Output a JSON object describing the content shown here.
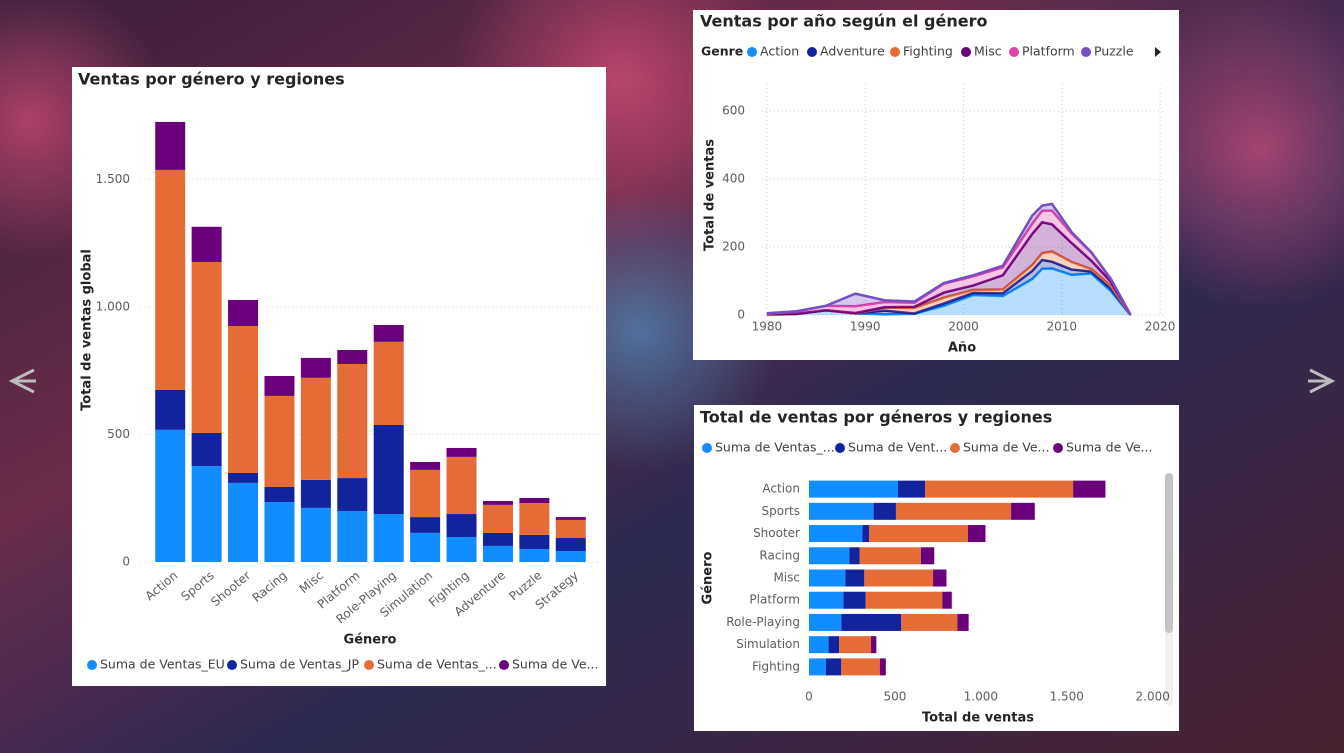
{
  "chart_data": [
    {
      "type": "bar",
      "stacked": true,
      "title": "Ventas por género y regiones",
      "x_label": "Género",
      "y_label": "Total de ventas global",
      "categories": [
        "Action",
        "Sports",
        "Shooter",
        "Racing",
        "Misc",
        "Platform",
        "Role-Playing",
        "Simulation",
        "Fighting",
        "Adventure",
        "Puzzle",
        "Strategy"
      ],
      "series": [
        {
          "name": "Suma de Ventas_EU",
          "color": "#118DFF",
          "values": [
            518,
            376,
            310,
            235,
            212,
            200,
            188,
            114,
            98,
            63,
            51,
            43
          ]
        },
        {
          "name": "Suma de Ventas_JP",
          "color": "#12239E",
          "values": [
            157,
            130,
            39,
            59,
            110,
            129,
            349,
            62,
            90,
            51,
            55,
            51
          ]
        },
        {
          "name": "Suma de Ventas_...",
          "color": "#E66C37",
          "values": [
            862,
            670,
            576,
            357,
            400,
            447,
            326,
            185,
            224,
            110,
            125,
            71
          ]
        },
        {
          "name": "Suma de Ve...",
          "color": "#6B007B",
          "values": [
            188,
            138,
            102,
            78,
            78,
            55,
            66,
            31,
            35,
            15,
            20,
            11
          ]
        }
      ],
      "ylim": [
        0,
        1760
      ],
      "yticks": [
        0,
        500,
        {
          "value": 1000,
          "label": "1.000"
        },
        {
          "value": 1500,
          "label": "1.500"
        }
      ],
      "grid": true,
      "legend": "bottom"
    },
    {
      "type": "area",
      "stacked": true,
      "title": "Ventas por año según el género",
      "x_label": "Año",
      "y_label": "Total de ventas",
      "legend_title": "Genre",
      "x": [
        1980,
        1983,
        1986,
        1989,
        1992,
        1995,
        1998,
        2001,
        2004,
        2007,
        2008,
        2009,
        2011,
        2013,
        2015,
        2017
      ],
      "series": [
        {
          "name": "Action",
          "color": "#118DFF",
          "values": [
            0.3,
            3,
            14,
            4.6,
            2,
            3.6,
            27,
            59,
            56,
            106,
            136,
            137,
            118,
            122,
            70,
            0
          ]
        },
        {
          "name": "Adventure",
          "color": "#12239E",
          "values": [
            0,
            0.4,
            0,
            0,
            11,
            1,
            7,
            6,
            8,
            24,
            26,
            20,
            16,
            6,
            8,
            0
          ]
        },
        {
          "name": "Fighting",
          "color": "#E66C37",
          "values": [
            0.8,
            0,
            0,
            0,
            9,
            16,
            17,
            9,
            11,
            17,
            20,
            30,
            22,
            7,
            8,
            0
          ]
        },
        {
          "name": "Misc",
          "color": "#6B007B",
          "values": [
            2.7,
            0,
            0,
            1.3,
            1.2,
            3.5,
            15,
            13,
            42,
            92,
            91,
            80,
            56,
            25,
            12,
            0
          ]
        },
        {
          "name": "Platform",
          "color": "#E044A7",
          "values": [
            0,
            6.9,
            13,
            20,
            15,
            12,
            26,
            27,
            23,
            30,
            34,
            40,
            28,
            24,
            7,
            0
          ]
        },
        {
          "name": "Puzzle",
          "color": "#744EC2",
          "values": [
            1.2,
            0.8,
            0,
            37,
            5,
            3.5,
            2,
            3,
            5,
            24,
            15,
            20,
            4,
            1,
            0.7,
            0
          ]
        }
      ],
      "xlim": [
        1979.5,
        2020.5
      ],
      "xticks": [
        1980,
        1990,
        2000,
        2010,
        2020
      ],
      "ylim": [
        0,
        680
      ],
      "yticks": [
        0,
        200,
        400,
        600
      ],
      "grid": true,
      "legend": "top"
    },
    {
      "type": "barh",
      "stacked": true,
      "title": "Total de ventas por géneros y regiones",
      "x_label": "Total de ventas",
      "y_label": "Género",
      "categories": [
        "Action",
        "Sports",
        "Shooter",
        "Racing",
        "Misc",
        "Platform",
        "Role-Playing",
        "Simulation",
        "Fighting"
      ],
      "series": [
        {
          "name": "Suma de Ventas_...",
          "color": "#118DFF",
          "values": [
            518,
            376,
            310,
            235,
            212,
            200,
            188,
            114,
            98
          ]
        },
        {
          "name": "Suma de Vent...",
          "color": "#12239E",
          "values": [
            157,
            130,
            39,
            59,
            110,
            129,
            349,
            62,
            90
          ]
        },
        {
          "name": "Suma de Ve...",
          "color": "#E66C37",
          "values": [
            862,
            670,
            576,
            357,
            400,
            447,
            326,
            185,
            224
          ]
        },
        {
          "name": "Suma de Ve...",
          "color": "#6B007B",
          "values": [
            188,
            138,
            102,
            78,
            78,
            55,
            66,
            31,
            35
          ]
        }
      ],
      "xlim": [
        0,
        2060
      ],
      "xticks": [
        0,
        500,
        {
          "value": 1000,
          "label": "1.000"
        },
        {
          "value": 1500,
          "label": "1.500"
        },
        {
          "value": 2000,
          "label": "2.000"
        }
      ],
      "grid": false,
      "legend": "top"
    }
  ]
}
